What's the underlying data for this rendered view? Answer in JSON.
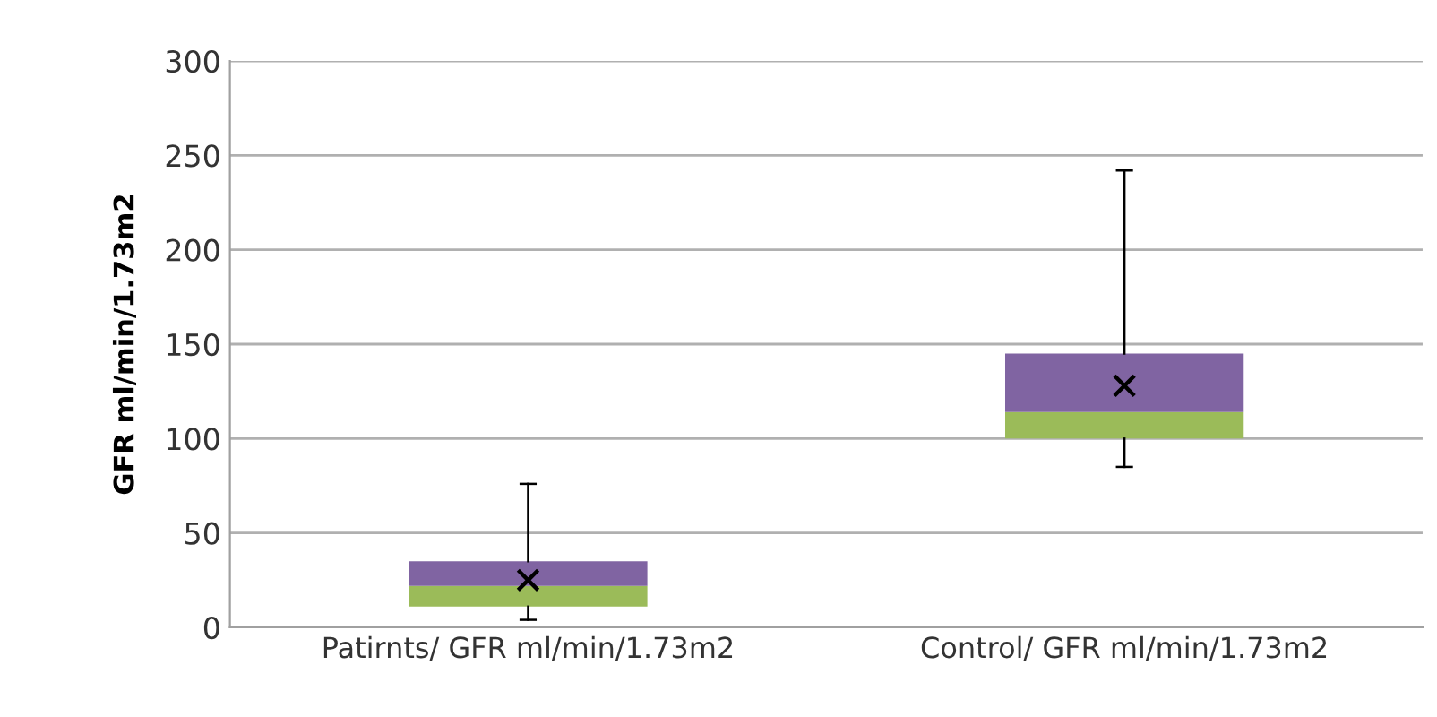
{
  "chart_data": {
    "type": "box",
    "ylabel": "GFR ml/min/1.73m2",
    "categories": [
      "Patirnts/ GFR ml/min/1.73m2",
      "Control/ GFR ml/min/1.73m2"
    ],
    "boxes": [
      {
        "low": 4,
        "q1": 11,
        "median": 22,
        "q3": 35,
        "high": 76,
        "mean": 25
      },
      {
        "low": 85,
        "q1": 100,
        "median": 114,
        "q3": 145,
        "high": 242,
        "mean": 128
      }
    ],
    "ylim": [
      0,
      300
    ],
    "yticks": [
      0,
      50,
      100,
      150,
      200,
      250,
      300
    ],
    "grid": "y",
    "marker": "cross"
  }
}
